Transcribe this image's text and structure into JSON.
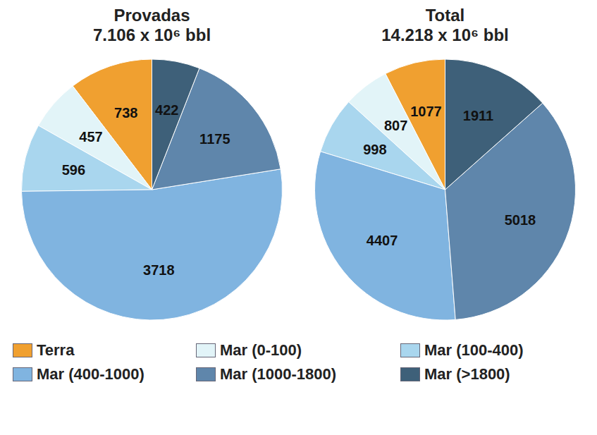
{
  "chart_data": [
    {
      "type": "pie",
      "title": "Provadas",
      "subtitle": "7.106 x 10⁶ bbl",
      "categories": [
        "Terra",
        "Mar (0-100)",
        "Mar (100-400)",
        "Mar (400-1000)",
        "Mar (1000-1800)",
        "Mar (>1800)"
      ],
      "values": [
        738,
        457,
        596,
        3718,
        1175,
        422
      ],
      "colors": [
        "#f0a030",
        "#e2f4f8",
        "#a9d6ee",
        "#80b4e0",
        "#5f86ab",
        "#3e6079"
      ],
      "data_labels": true,
      "legend": "bottom"
    },
    {
      "type": "pie",
      "title": "Total",
      "subtitle": "14.218 x 10⁶ bbl",
      "categories": [
        "Terra",
        "Mar (0-100)",
        "Mar (100-400)",
        "Mar (400-1000)",
        "Mar (1000-1800)",
        "Mar (>1800)"
      ],
      "values": [
        1077,
        807,
        998,
        4407,
        5018,
        1911
      ],
      "colors": [
        "#f0a030",
        "#e2f4f8",
        "#a9d6ee",
        "#80b4e0",
        "#5f86ab",
        "#3e6079"
      ],
      "data_labels": true,
      "legend": "bottom"
    }
  ]
}
